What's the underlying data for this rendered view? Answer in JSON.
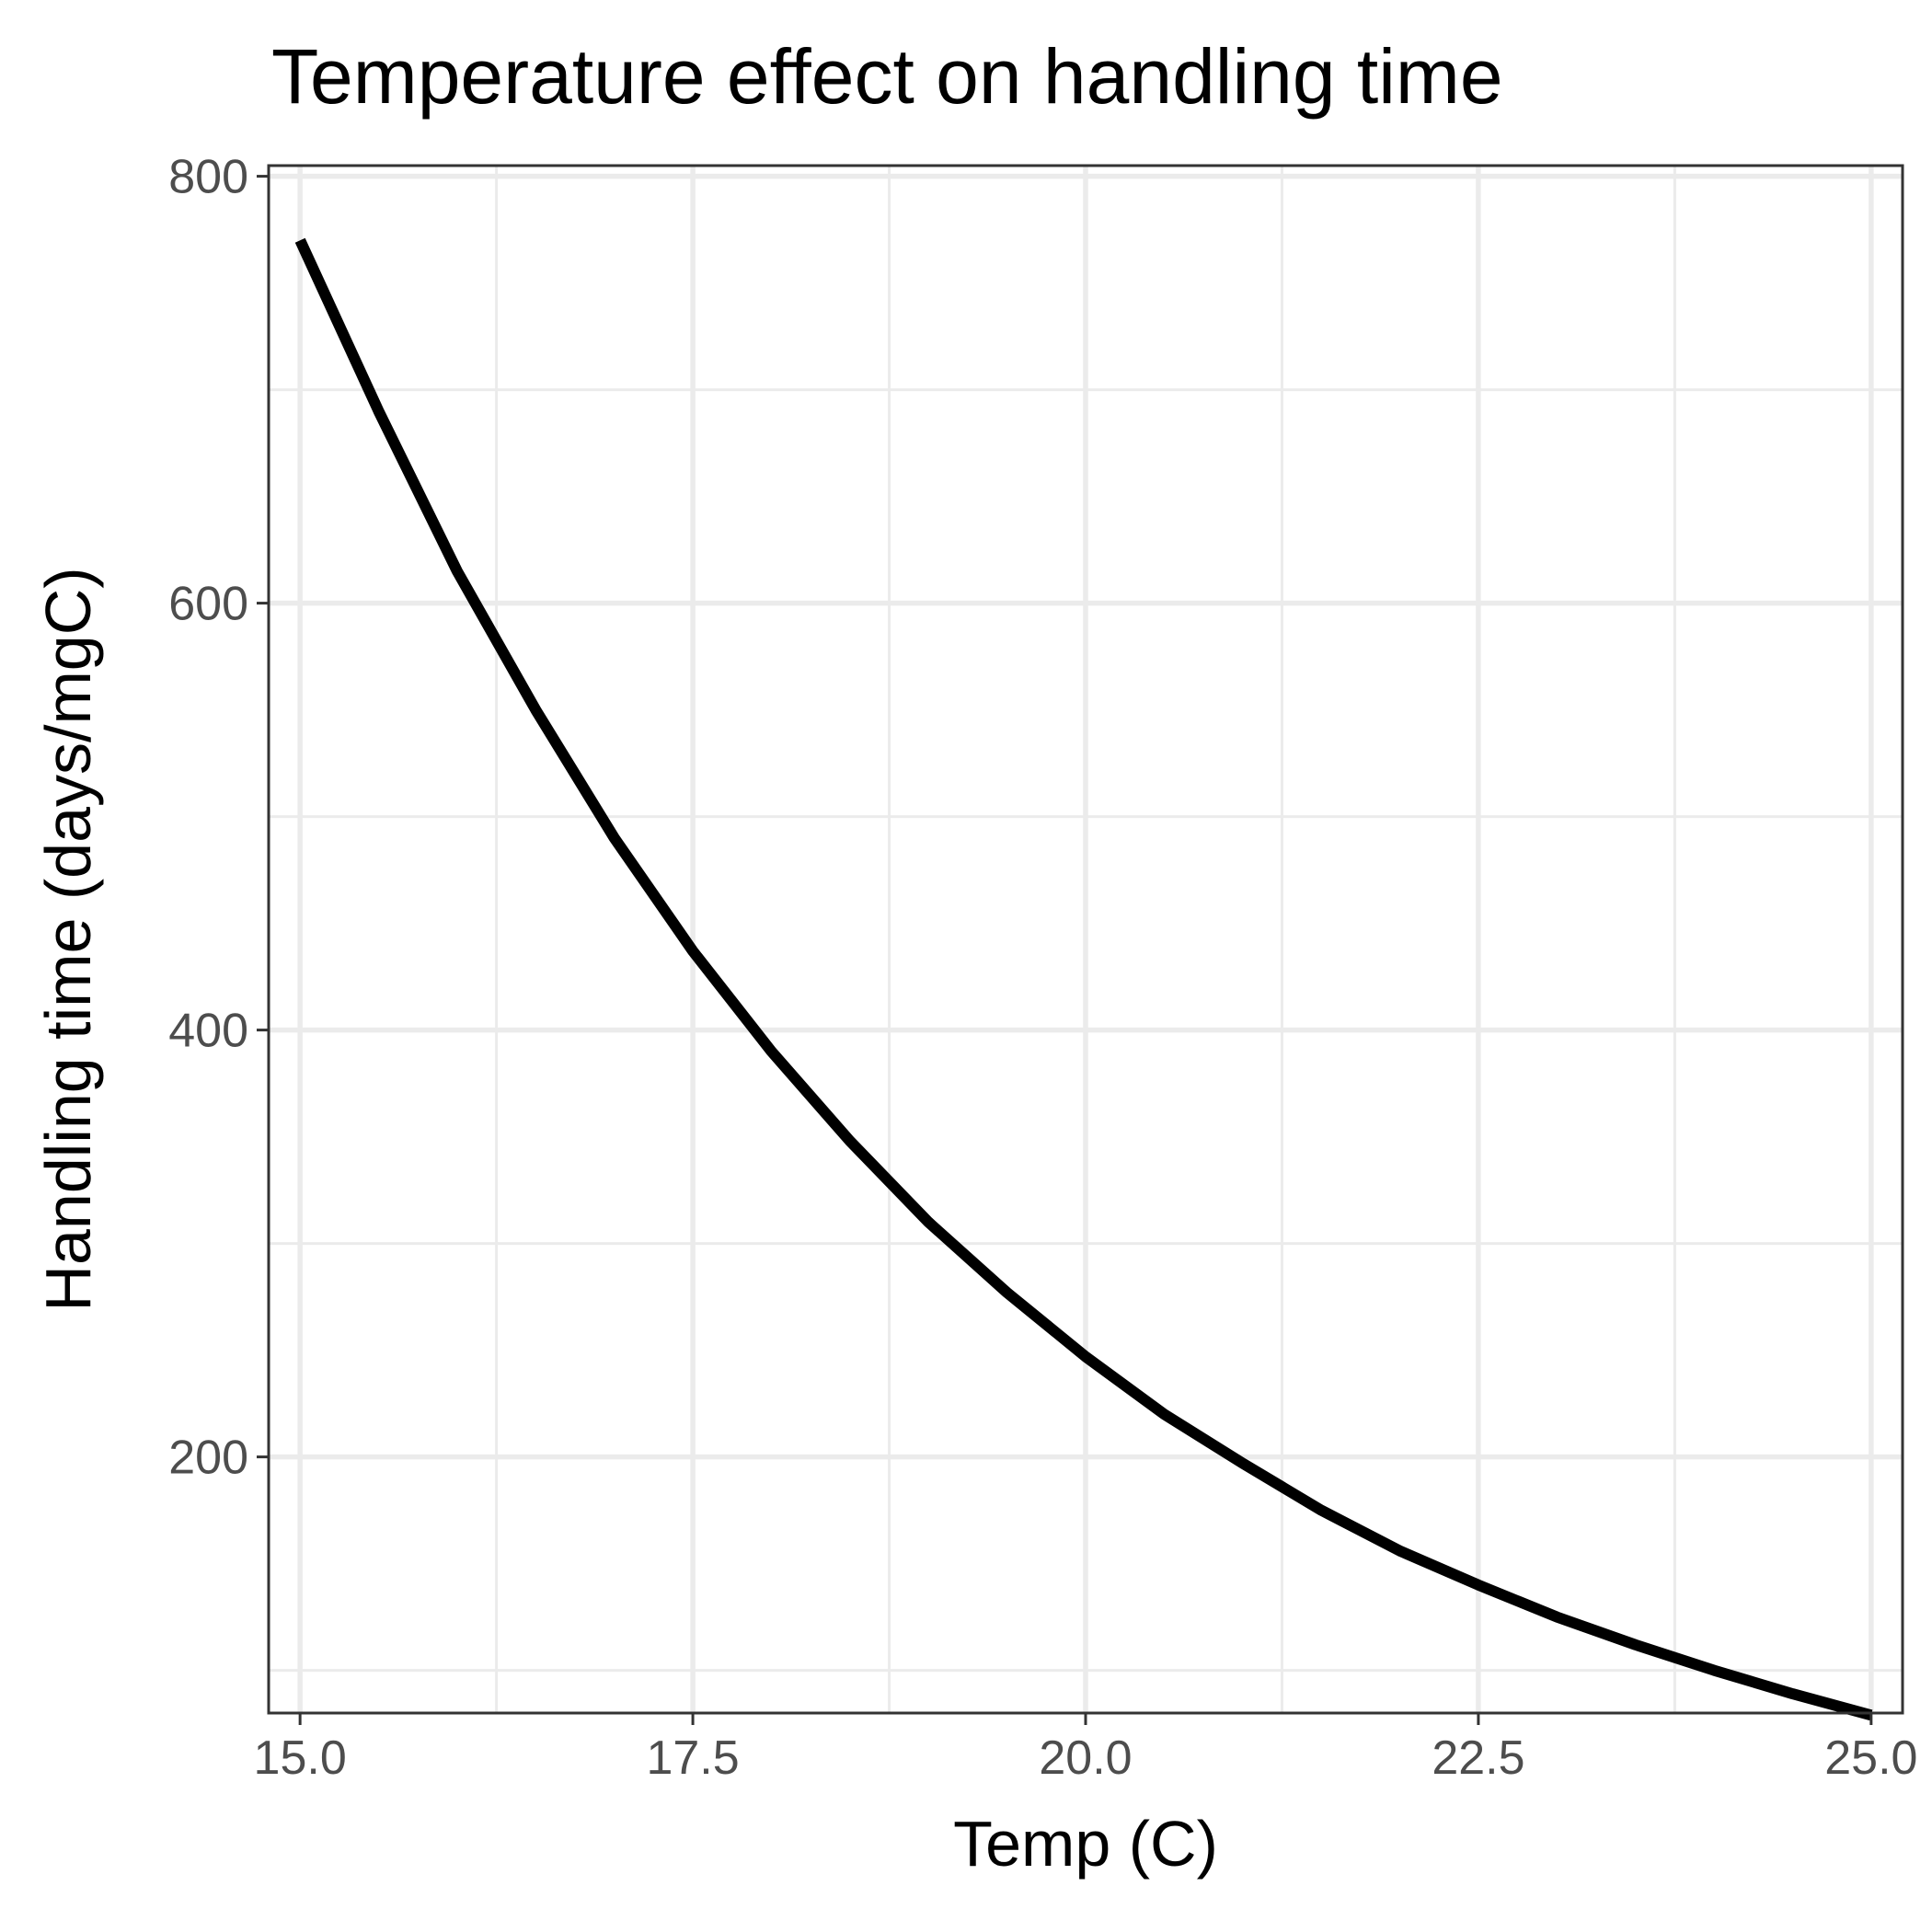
{
  "chart_data": {
    "type": "line",
    "title": "Temperature effect on handling time",
    "xlabel": "Temp (C)",
    "ylabel": "Handling time (days/mgC)",
    "xlim": [
      14.8,
      25.2
    ],
    "ylim": [
      80,
      805
    ],
    "x_ticks": [
      15.0,
      17.5,
      20.0,
      22.5,
      25.0
    ],
    "x_tick_labels": [
      "15.0",
      "17.5",
      "20.0",
      "22.5",
      "25.0"
    ],
    "y_ticks": [
      200,
      400,
      600,
      800
    ],
    "y_tick_labels": [
      "200",
      "400",
      "600",
      "800"
    ],
    "x_minor": [
      16.25,
      18.75,
      21.25,
      23.75
    ],
    "y_minor": [
      100,
      300,
      500,
      700
    ],
    "grid": true,
    "legend": "none",
    "line_color": "#000000",
    "series": [
      {
        "x": [
          15.0,
          15.5,
          16.0,
          16.5,
          17.0,
          17.5,
          18.0,
          18.5,
          19.0,
          19.5,
          20.0,
          20.5,
          21.0,
          21.5,
          22.0,
          22.5,
          23.0,
          23.5,
          24.0,
          24.5,
          25.0
        ],
        "values": [
          770,
          690,
          615,
          550,
          490,
          437,
          390,
          348,
          310,
          277,
          247,
          220,
          197,
          175,
          156,
          140,
          125,
          112,
          100,
          89,
          79
        ]
      }
    ]
  }
}
